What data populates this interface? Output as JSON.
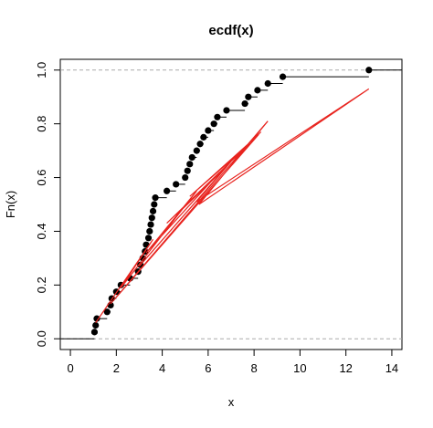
{
  "chart_data": {
    "type": "ecdf",
    "title": "ecdf(x)",
    "xlabel": "x",
    "ylabel": "Fn(x)",
    "xlim": [
      -0.44,
      14.44
    ],
    "ylim": [
      -0.04,
      1.04
    ],
    "xticks": [
      0,
      2,
      4,
      6,
      8,
      10,
      12,
      14
    ],
    "yticks": [
      {
        "value": 0,
        "label": "0.0"
      },
      0.2,
      0.4,
      0.6,
      0.8,
      {
        "value": 1,
        "label": "1.0"
      }
    ],
    "series": [
      {
        "color": "#000000",
        "x": [
          1.05,
          1.1,
          1.15,
          1.6,
          1.75,
          1.8,
          2.0,
          2.2,
          2.6,
          2.95,
          3.05,
          3.15,
          3.25,
          3.3,
          3.4,
          3.45,
          3.5,
          3.55,
          3.6,
          3.65,
          3.7,
          4.2,
          4.6,
          5.0,
          5.1,
          5.2,
          5.3,
          5.5,
          5.65,
          5.8,
          6.0,
          6.25,
          6.4,
          6.8,
          7.6,
          7.75,
          8.15,
          8.6,
          9.25,
          13.0
        ],
        "values": [
          0.025,
          0.05,
          0.075,
          0.1,
          0.125,
          0.15,
          0.175,
          0.2,
          0.225,
          0.25,
          0.275,
          0.3,
          0.325,
          0.35,
          0.375,
          0.4,
          0.425,
          0.45,
          0.475,
          0.5,
          0.525,
          0.55,
          0.575,
          0.6,
          0.625,
          0.65,
          0.675,
          0.7,
          0.725,
          0.75,
          0.775,
          0.8,
          0.825,
          0.85,
          0.875,
          0.9,
          0.925,
          0.95,
          0.975,
          1.0
        ]
      },
      {
        "color": "#e8241f",
        "x": [
          1.1,
          3.6,
          2.2,
          5.5,
          3.3,
          6.5,
          4.2,
          7.6,
          5.2,
          8.2,
          1.75,
          8.6,
          5.6,
          13.0,
          5.5,
          7.0,
          3.0,
          6.8,
          4.6,
          8.3
        ],
        "values": [
          0.06,
          0.37,
          0.19,
          0.55,
          0.32,
          0.62,
          0.43,
          0.71,
          0.53,
          0.76,
          0.13,
          0.81,
          0.5,
          0.93,
          0.51,
          0.66,
          0.27,
          0.64,
          0.46,
          0.77
        ]
      }
    ]
  }
}
